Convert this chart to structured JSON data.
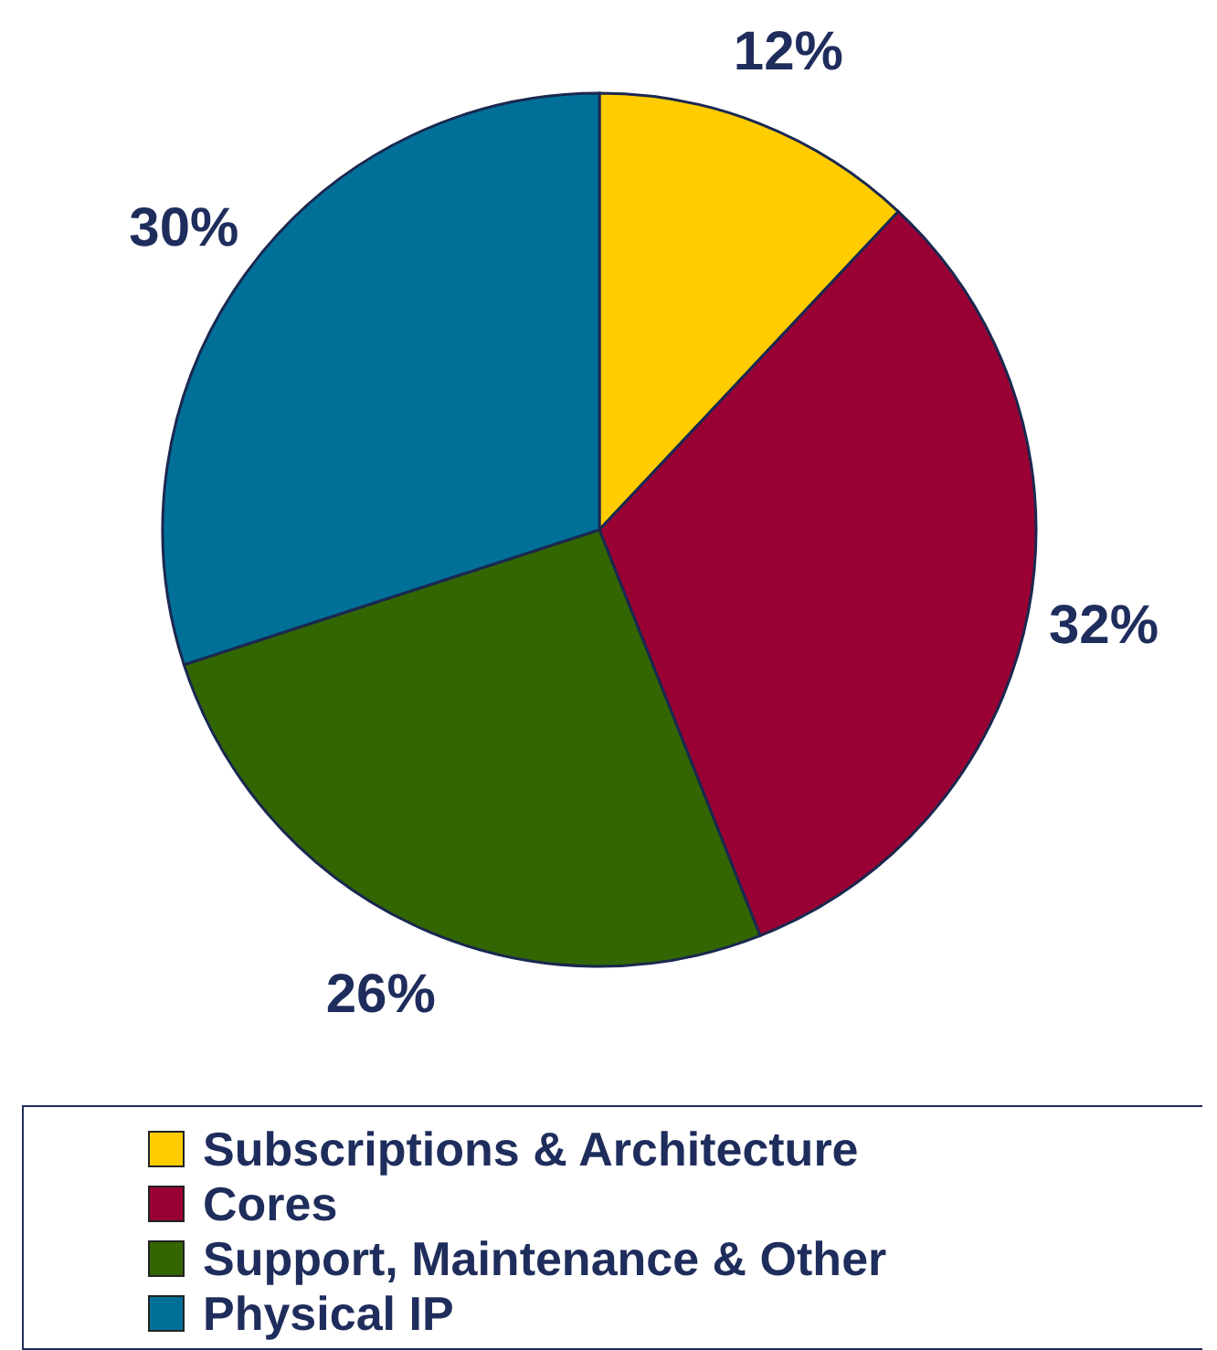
{
  "chart_data": {
    "type": "pie",
    "categories": [
      "Subscriptions & Architecture",
      "Cores",
      "Support, Maintenance & Other",
      "Physical IP"
    ],
    "values": [
      12,
      32,
      26,
      30
    ],
    "colors": [
      "#ffcc00",
      "#990033",
      "#336600",
      "#007099"
    ],
    "value_labels": [
      "12%",
      "32%",
      "26%",
      "30%"
    ],
    "legend": "bottom"
  }
}
